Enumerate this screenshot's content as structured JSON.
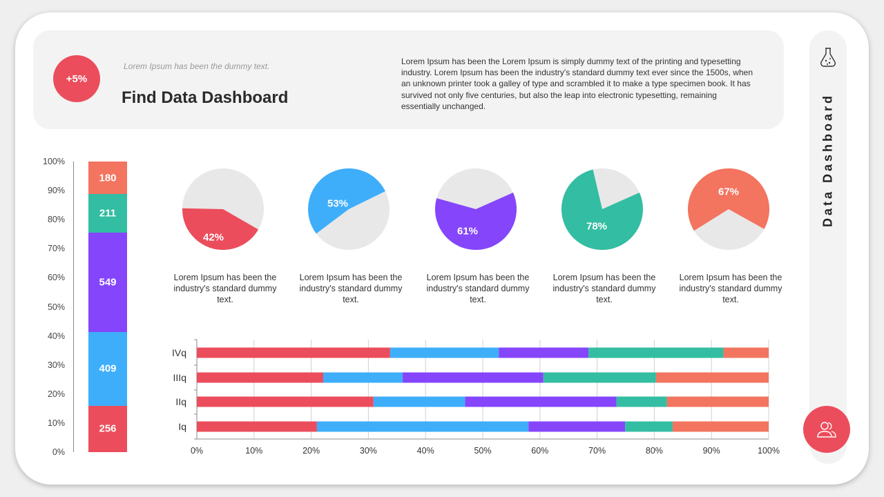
{
  "header": {
    "badge": "+5%",
    "subtitle": "Lorem Ipsum has been the dummy text.",
    "title": "Find Data Dashboard",
    "description": "Lorem Ipsum has been the Lorem Ipsum is simply dummy text of the printing and typesetting industry.  Lorem Ipsum has been the industry's standard dummy text ever since the 1500s, when an unknown printer took a galley of type and scrambled it to make a type specimen book. It has survived not only five centuries, but also the leap into electronic typesetting, remaining essentially unchanged."
  },
  "sidebar": {
    "title": "Data Dashboard",
    "top_icon": "flask-icon",
    "bottom_icon": "users-icon"
  },
  "colors": {
    "red": "#eb4d5c",
    "blue": "#3eaefb",
    "purple": "#8545fb",
    "green": "#33bda2",
    "orange": "#f3745f",
    "grey": "#e8e8e8"
  },
  "chart_data": [
    {
      "type": "bar",
      "stacked": true,
      "normalized": true,
      "y_ticks": [
        "0%",
        "10%",
        "20%",
        "30%",
        "40%",
        "50%",
        "60%",
        "70%",
        "80%",
        "90%",
        "100%"
      ],
      "ylim": [
        0,
        100
      ],
      "series": [
        {
          "value": 256,
          "label": "256",
          "color": "#eb4d5c"
        },
        {
          "value": 409,
          "label": "409",
          "color": "#3eaefb"
        },
        {
          "value": 549,
          "label": "549",
          "color": "#8545fb"
        },
        {
          "value": 211,
          "label": "211",
          "color": "#33bda2"
        },
        {
          "value": 180,
          "label": "180",
          "color": "#f3745f"
        }
      ]
    },
    {
      "type": "pie",
      "pies": [
        {
          "value": 42,
          "label": "42%",
          "color": "#eb4d5c",
          "caption": "Lorem Ipsum has been the industry's standard dummy text."
        },
        {
          "value": 53,
          "label": "53%",
          "color": "#3eaefb",
          "caption": "Lorem Ipsum has been the industry's standard dummy text."
        },
        {
          "value": 61,
          "label": "61%",
          "color": "#8545fb",
          "caption": "Lorem Ipsum has been the industry's standard dummy text."
        },
        {
          "value": 78,
          "label": "78%",
          "color": "#33bda2",
          "caption": "Lorem Ipsum has been the industry's standard dummy text."
        },
        {
          "value": 67,
          "label": "67%",
          "color": "#f3745f",
          "caption": "Lorem Ipsum has been the industry's standard dummy text."
        }
      ]
    },
    {
      "type": "bar",
      "orientation": "horizontal",
      "stacked": true,
      "normalized": true,
      "categories": [
        "IVq",
        "IIIq",
        "IIq",
        "Iq"
      ],
      "x_ticks": [
        "0%",
        "10%",
        "20%",
        "30%",
        "40%",
        "50%",
        "60%",
        "70%",
        "80%",
        "90%",
        "100%"
      ],
      "xlim": [
        0,
        100
      ],
      "grid": true,
      "colors": [
        "#eb4d5c",
        "#3eaefb",
        "#8545fb",
        "#33bda2",
        "#f3745f"
      ],
      "values": [
        [
          33.8,
          19.0,
          15.7,
          23.6,
          7.9
        ],
        [
          22.1,
          13.9,
          24.6,
          19.7,
          19.7
        ],
        [
          30.9,
          16.0,
          26.5,
          8.8,
          17.8
        ],
        [
          21.0,
          37.0,
          16.9,
          8.3,
          16.8
        ]
      ]
    }
  ]
}
